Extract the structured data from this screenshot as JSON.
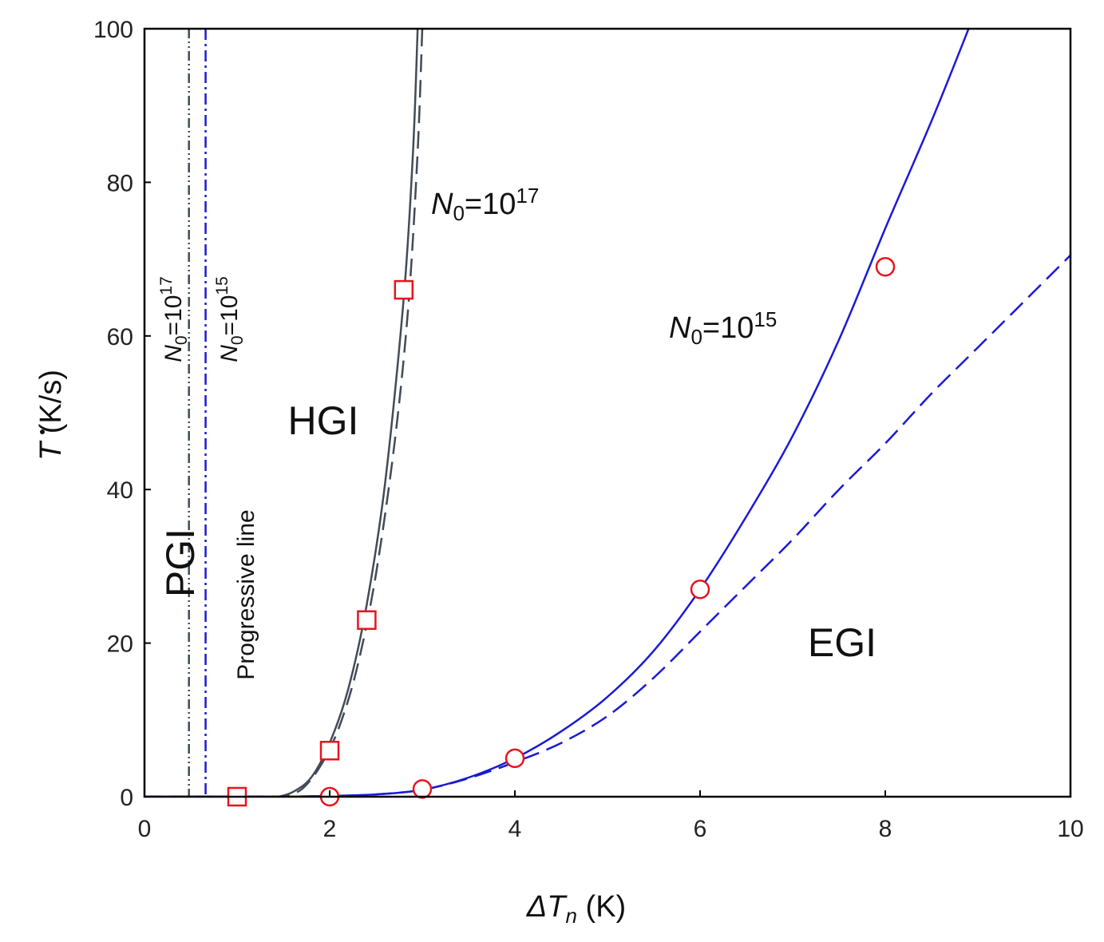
{
  "chart_data": {
    "type": "line",
    "title": "",
    "xlabel": {
      "symbol": "ΔT",
      "subscript": "n",
      "unit": " (K)"
    },
    "ylabel": {
      "symbol": "T",
      "unit": " (K/s)"
    },
    "xlim": [
      0,
      10
    ],
    "ylim": [
      0,
      100
    ],
    "xticks": [
      0,
      2,
      4,
      6,
      8,
      10
    ],
    "yticks": [
      0,
      20,
      40,
      60,
      80,
      100
    ],
    "grid": false,
    "colors": {
      "dark": "#424b57",
      "blue": "#1a1ad6",
      "red": "#e8141b"
    },
    "series": [
      {
        "name": "N0=10^17 model (solid)",
        "color": "#424b57",
        "style": "solid",
        "x": [
          1.45,
          1.6,
          1.8,
          2.0,
          2.2,
          2.4,
          2.6,
          2.8,
          2.9,
          2.95
        ],
        "y": [
          0,
          0.6,
          2.5,
          7,
          14,
          25,
          41,
          65,
          84,
          100
        ]
      },
      {
        "name": "N0=10^17 model (dashed)",
        "color": "#424b57",
        "style": "dashed",
        "x": [
          1.5,
          1.7,
          1.9,
          2.1,
          2.3,
          2.5,
          2.7,
          2.85,
          2.95,
          3.0
        ],
        "y": [
          0,
          1,
          4,
          9,
          17,
          29,
          46,
          64,
          84,
          100
        ]
      },
      {
        "name": "N0=10^15 model (solid)",
        "color": "#1a1ad6",
        "style": "solid",
        "x": [
          1.5,
          2.0,
          2.5,
          3.0,
          3.5,
          4.0,
          4.5,
          5.0,
          5.5,
          6.0,
          6.5,
          7.0,
          7.5,
          8.0,
          8.5,
          8.9
        ],
        "y": [
          0,
          0.1,
          0.3,
          0.9,
          2.5,
          5,
          8.5,
          13,
          19,
          27,
          36.5,
          47,
          59.5,
          74,
          88,
          100
        ]
      },
      {
        "name": "N0=10^15 model (dashed)",
        "color": "#1a1ad6",
        "style": "dashed",
        "x": [
          1.5,
          2.0,
          2.5,
          3.0,
          3.5,
          4.0,
          4.5,
          5.0,
          5.5,
          6.0,
          6.5,
          7.0,
          7.5,
          8.0,
          8.5,
          9.0,
          9.5,
          10.0
        ],
        "y": [
          0,
          0.1,
          0.3,
          0.9,
          2.4,
          4.5,
          7,
          10.5,
          15.5,
          21.5,
          27.5,
          33.5,
          40,
          46,
          52.5,
          58.5,
          64.5,
          70.5
        ]
      },
      {
        "name": "N0=10^17 data (squares)",
        "color": "#e8141b",
        "marker": "square",
        "x": [
          1.0,
          2.0,
          2.4,
          2.8
        ],
        "y": [
          0,
          6,
          23,
          66
        ]
      },
      {
        "name": "N0=10^15 data (circles)",
        "color": "#e8141b",
        "marker": "circle",
        "x": [
          2.0,
          3.0,
          4.0,
          6.0,
          8.0
        ],
        "y": [
          0,
          1,
          5,
          27,
          69
        ]
      }
    ],
    "vlines": [
      {
        "name": "Progressive line N0=10^17",
        "x": 0.48,
        "color": "#424b57",
        "style": "dash-dot-dot"
      },
      {
        "name": "Progressive line N0=10^15",
        "x": 0.66,
        "color": "#1a1ad6",
        "style": "dash-dot"
      }
    ],
    "annotations": {
      "n0_1e17_curve": {
        "base": "N",
        "sub": "0",
        "eq": "=10",
        "sup": "17"
      },
      "n0_1e15_curve": {
        "base": "N",
        "sub": "0",
        "eq": "=10",
        "sup": "15"
      },
      "vline_1e17": {
        "base": "N",
        "sub": "0",
        "eq": "=10",
        "sup": "17"
      },
      "vline_1e15": {
        "base": "N",
        "sub": "0",
        "eq": "=10",
        "sup": "15"
      },
      "hgi": "HGI",
      "egi": "EGI",
      "pgi": "PGI",
      "progressive_line": "Progressive line"
    }
  }
}
